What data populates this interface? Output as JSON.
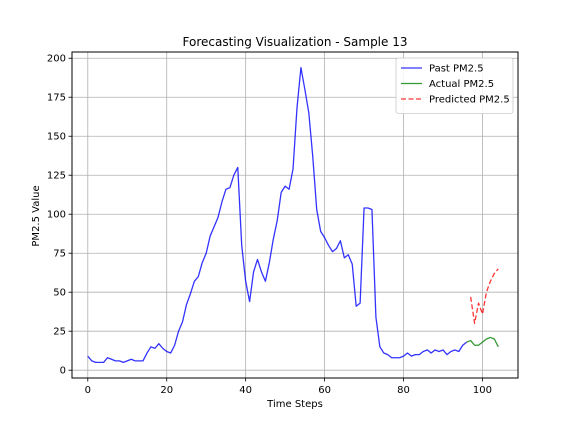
{
  "chart_data": {
    "type": "line",
    "title": "Forecasting Visualization - Sample 13",
    "xlabel": "Time Steps",
    "ylabel": "PM2.5 Value",
    "xlim": [
      -4,
      109
    ],
    "ylim": [
      -5,
      204
    ],
    "grid": true,
    "legend_position": "top-right",
    "x_ticks": [
      0,
      20,
      40,
      60,
      80,
      100
    ],
    "y_ticks": [
      0,
      25,
      50,
      75,
      100,
      125,
      150,
      175,
      200
    ],
    "series": [
      {
        "name": "Past PM2.5",
        "color": "#0000ff",
        "style": "solid",
        "x": [
          0,
          1,
          2,
          3,
          4,
          5,
          6,
          7,
          8,
          9,
          10,
          11,
          12,
          13,
          14,
          15,
          16,
          17,
          18,
          19,
          20,
          21,
          22,
          23,
          24,
          25,
          26,
          27,
          28,
          29,
          30,
          31,
          32,
          33,
          34,
          35,
          36,
          37,
          38,
          39,
          40,
          41,
          42,
          43,
          44,
          45,
          46,
          47,
          48,
          49,
          50,
          51,
          52,
          53,
          54,
          55,
          56,
          57,
          58,
          59,
          60,
          61,
          62,
          63,
          64,
          65,
          66,
          67,
          68,
          69,
          70,
          71,
          72,
          73,
          74,
          75,
          76,
          77,
          78,
          79,
          80,
          81,
          82,
          83,
          84,
          85,
          86,
          87,
          88,
          89,
          90,
          91,
          92,
          93,
          94,
          95,
          96
        ],
        "y": [
          9,
          6,
          5,
          5,
          5,
          8,
          7,
          6,
          6,
          5,
          6,
          7,
          6,
          6,
          6,
          11,
          15,
          14,
          17,
          14,
          12,
          11,
          16,
          25,
          31,
          42,
          49,
          57,
          60,
          69,
          75,
          86,
          92,
          98,
          108,
          116,
          117,
          125,
          130,
          80,
          57,
          44,
          63,
          71,
          63,
          57,
          69,
          84,
          96,
          114,
          118,
          116,
          129,
          168,
          194,
          180,
          165,
          137,
          103,
          89,
          85,
          80,
          76,
          78,
          83,
          72,
          74,
          68,
          41,
          43,
          104,
          104,
          103,
          34,
          15,
          11,
          10,
          8,
          8,
          8,
          9,
          11,
          9,
          10,
          10,
          12,
          13,
          11,
          13,
          12,
          13,
          10,
          12,
          13,
          12,
          16,
          18
        ]
      },
      {
        "name": "Actual PM2.5",
        "color": "#008000",
        "style": "solid",
        "x": [
          96,
          97,
          98,
          99,
          100,
          101,
          102,
          103,
          104
        ],
        "y": [
          18,
          19,
          16,
          16,
          18,
          20,
          21,
          20,
          15
        ]
      },
      {
        "name": "Predicted PM2.5",
        "color": "#ff0000",
        "style": "dashed",
        "x": [
          97,
          98,
          99,
          100,
          101,
          102,
          103,
          104
        ],
        "y": [
          47,
          30,
          43,
          36,
          50,
          57,
          62,
          65
        ]
      }
    ]
  }
}
